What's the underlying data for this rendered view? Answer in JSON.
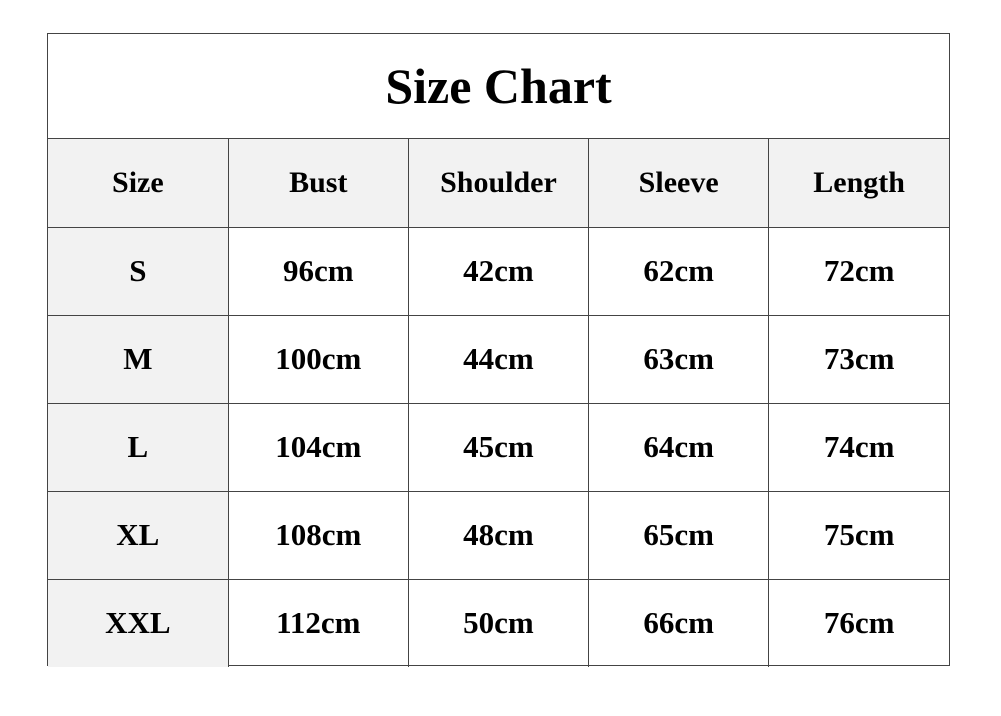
{
  "title": "Size Chart",
  "headers": [
    "Size",
    "Bust",
    "Shoulder",
    "Sleeve",
    "Length"
  ],
  "rows": [
    [
      "S",
      "96cm",
      "42cm",
      "62cm",
      "72cm"
    ],
    [
      "M",
      "100cm",
      "44cm",
      "63cm",
      "73cm"
    ],
    [
      "L",
      "104cm",
      "45cm",
      "64cm",
      "74cm"
    ],
    [
      "XL",
      "108cm",
      "48cm",
      "65cm",
      "75cm"
    ],
    [
      "XXL",
      "112cm",
      "50cm",
      "66cm",
      "76cm"
    ]
  ],
  "colors": {
    "header_bg": "#f2f2f2",
    "border": "#444444"
  }
}
